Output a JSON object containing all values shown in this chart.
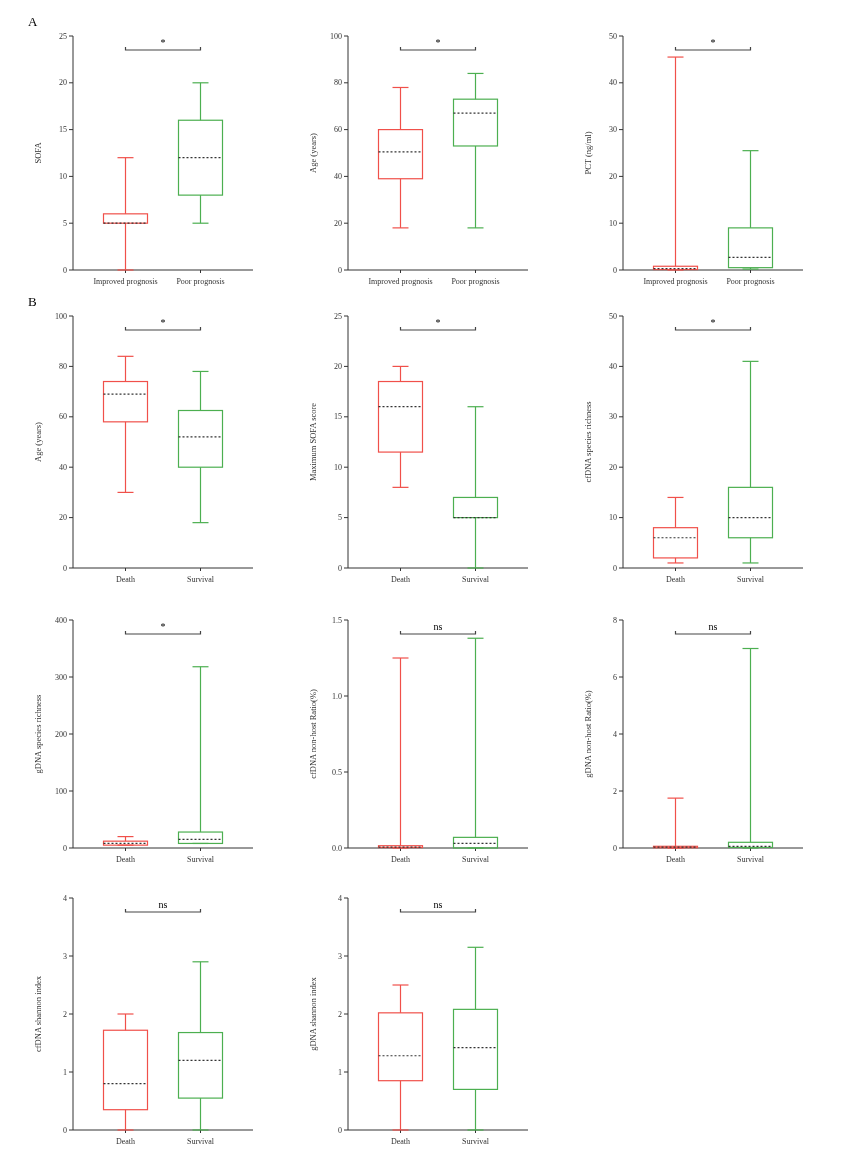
{
  "chart_data": [
    {
      "type": "box",
      "title": "A",
      "ylabel": "SOFA",
      "categories": [
        "Improved prognosis",
        "Poor prognosis"
      ],
      "colors": [
        "#f0504a",
        "#4caf50"
      ],
      "ylim": [
        0,
        25
      ],
      "yticks": [
        0,
        5,
        10,
        15,
        20,
        25
      ],
      "annotations": [
        "*"
      ],
      "boxes": [
        {
          "low": 0,
          "q1": 5,
          "median": 5,
          "q3": 6,
          "high": 12
        },
        {
          "low": 5,
          "q1": 8,
          "median": 12,
          "q3": 16,
          "high": 20
        }
      ]
    },
    {
      "type": "box",
      "ylabel": "Age (years)",
      "categories": [
        "Improved prognosis",
        "Poor prognosis"
      ],
      "colors": [
        "#f0504a",
        "#4caf50"
      ],
      "ylim": [
        0,
        100
      ],
      "yticks": [
        0,
        20,
        40,
        60,
        80,
        100
      ],
      "annotations": [
        "*"
      ],
      "boxes": [
        {
          "low": 18,
          "q1": 39,
          "median": 50.5,
          "q3": 60,
          "high": 78
        },
        {
          "low": 18,
          "q1": 53,
          "median": 67,
          "q3": 73,
          "high": 84
        }
      ]
    },
    {
      "type": "box",
      "ylabel": "PCT (ng/ml)",
      "categories": [
        "Improved prognosis",
        "Poor prognosis"
      ],
      "colors": [
        "#f0504a",
        "#4caf50"
      ],
      "ylim": [
        0,
        50
      ],
      "yticks": [
        0,
        10,
        20,
        30,
        40,
        50
      ],
      "annotations": [
        "*"
      ],
      "boxes": [
        {
          "low": 0,
          "q1": 0.1,
          "median": 0.3,
          "q3": 0.8,
          "high": 45.5
        },
        {
          "low": 0.2,
          "q1": 0.5,
          "median": 2.7,
          "q3": 9,
          "high": 25.5
        }
      ]
    },
    {
      "type": "box",
      "title": "B",
      "ylabel": "Age (years)",
      "categories": [
        "Death",
        "Survival"
      ],
      "colors": [
        "#f0504a",
        "#4caf50"
      ],
      "ylim": [
        0,
        100
      ],
      "yticks": [
        0,
        20,
        40,
        60,
        80,
        100
      ],
      "annotations": [
        "*"
      ],
      "boxes": [
        {
          "low": 30,
          "q1": 58,
          "median": 69,
          "q3": 74,
          "high": 84
        },
        {
          "low": 18,
          "q1": 40,
          "median": 52,
          "q3": 62.5,
          "high": 78
        }
      ]
    },
    {
      "type": "box",
      "ylabel": "Maximum SOFA score",
      "categories": [
        "Death",
        "Survival"
      ],
      "colors": [
        "#f0504a",
        "#4caf50"
      ],
      "ylim": [
        0,
        25
      ],
      "yticks": [
        0,
        5,
        10,
        15,
        20,
        25
      ],
      "annotations": [
        "*"
      ],
      "boxes": [
        {
          "low": 8,
          "q1": 11.5,
          "median": 16,
          "q3": 18.5,
          "high": 20
        },
        {
          "low": 0,
          "q1": 5,
          "median": 5,
          "q3": 7,
          "high": 16
        }
      ]
    },
    {
      "type": "box",
      "ylabel": "cfDNA species richness",
      "categories": [
        "Death",
        "Survival"
      ],
      "colors": [
        "#f0504a",
        "#4caf50"
      ],
      "ylim": [
        0,
        50
      ],
      "yticks": [
        0,
        10,
        20,
        30,
        40,
        50
      ],
      "annotations": [
        "*"
      ],
      "boxes": [
        {
          "low": 1,
          "q1": 2,
          "median": 6,
          "q3": 8,
          "high": 14
        },
        {
          "low": 1,
          "q1": 6,
          "median": 10,
          "q3": 16,
          "high": 41
        }
      ]
    },
    {
      "type": "box",
      "ylabel": "gDNA species richness",
      "categories": [
        "Death",
        "Survival"
      ],
      "colors": [
        "#f0504a",
        "#4caf50"
      ],
      "ylim": [
        0,
        400
      ],
      "yticks": [
        0,
        100,
        200,
        300,
        400
      ],
      "annotations": [
        "*"
      ],
      "boxes": [
        {
          "low": 5,
          "q1": 5,
          "median": 8,
          "q3": 12,
          "high": 20
        },
        {
          "low": 8,
          "q1": 8,
          "median": 15,
          "q3": 28,
          "high": 318
        }
      ]
    },
    {
      "type": "box",
      "ylabel": "cfDNA non-host Ratio(%)",
      "categories": [
        "Death",
        "Survival"
      ],
      "colors": [
        "#f0504a",
        "#4caf50"
      ],
      "ylim": [
        0,
        1.5
      ],
      "yticks": [
        {
          "value": 0,
          "label": "0.0"
        },
        0.5,
        {
          "value": 1,
          "label": "1.0"
        },
        1.5
      ],
      "annotations": [
        "ns"
      ],
      "boxes": [
        {
          "low": 0,
          "q1": 0.003,
          "median": 0.006,
          "q3": 0.015,
          "high": 1.25
        },
        {
          "low": 0,
          "q1": 0,
          "median": 0.03,
          "q3": 0.07,
          "high": 1.38
        }
      ]
    },
    {
      "type": "box",
      "ylabel": "gDNA non-host Ratio(%)",
      "categories": [
        "Death",
        "Survival"
      ],
      "colors": [
        "#f0504a",
        "#4caf50"
      ],
      "ylim": [
        0,
        8
      ],
      "yticks": [
        0,
        2,
        4,
        6,
        8
      ],
      "annotations": [
        "ns"
      ],
      "boxes": [
        {
          "low": 0,
          "q1": 0.01,
          "median": 0.03,
          "q3": 0.06,
          "high": 1.75
        },
        {
          "low": 0,
          "q1": 0.02,
          "median": 0.06,
          "q3": 0.2,
          "high": 7
        }
      ]
    },
    {
      "type": "box",
      "ylabel": "cfDNA shannon index",
      "categories": [
        "Death",
        "Survival"
      ],
      "colors": [
        "#f0504a",
        "#4caf50"
      ],
      "ylim": [
        0,
        4
      ],
      "yticks": [
        0,
        1,
        2,
        3,
        4
      ],
      "annotations": [
        "ns"
      ],
      "boxes": [
        {
          "low": 0,
          "q1": 0.35,
          "median": 0.8,
          "q3": 1.72,
          "high": 2
        },
        {
          "low": 0,
          "q1": 0.55,
          "median": 1.2,
          "q3": 1.68,
          "high": 2.9
        }
      ]
    },
    {
      "type": "box",
      "ylabel": "gDNA shannon index",
      "categories": [
        "Death",
        "Survival"
      ],
      "colors": [
        "#f0504a",
        "#4caf50"
      ],
      "ylim": [
        0,
        4
      ],
      "yticks": [
        0,
        1,
        2,
        3,
        4
      ],
      "annotations": [
        "ns"
      ],
      "boxes": [
        {
          "low": 0,
          "q1": 0.85,
          "median": 1.28,
          "q3": 2.02,
          "high": 2.5
        },
        {
          "low": 0,
          "q1": 0.7,
          "median": 1.42,
          "q3": 2.08,
          "high": 3.15
        }
      ]
    }
  ]
}
